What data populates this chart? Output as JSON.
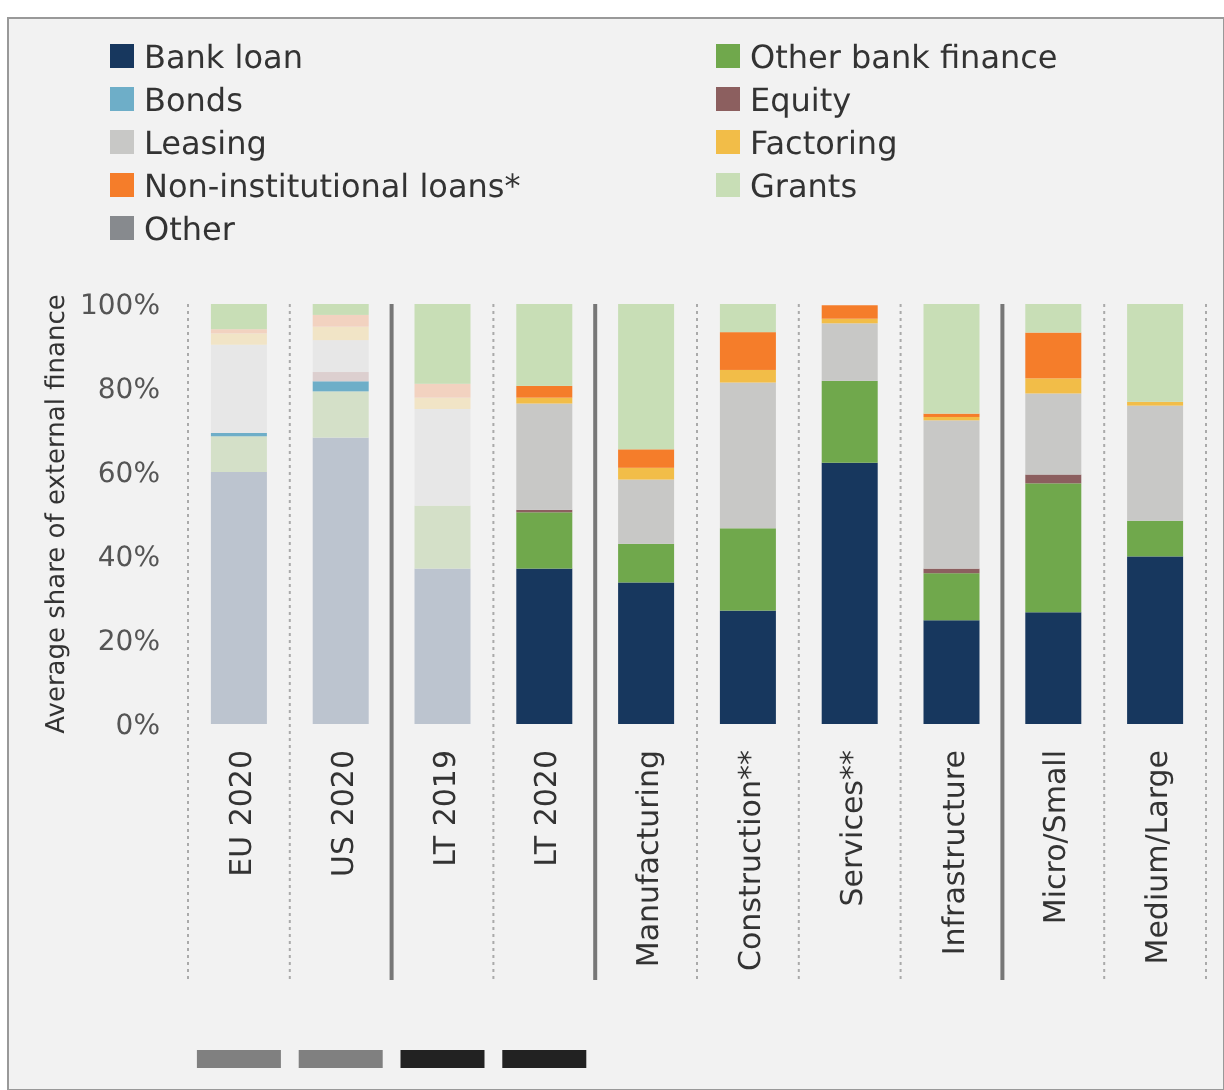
{
  "chart_data": {
    "type": "bar",
    "stacked": true,
    "ylabel": "Average share of external finance",
    "legend": "top",
    "categories": [
      "EU 2020",
      "US 2020",
      "LT 2019",
      "LT 2020",
      "Manufacturing",
      "Construction**",
      "Services**",
      "Infrastructure",
      "Micro/Small",
      "Medium/Large"
    ],
    "ylim": [
      0,
      100
    ],
    "yticks": [
      {
        "value": 0,
        "label": "0%"
      },
      {
        "value": 20,
        "label": "20%"
      },
      {
        "value": 40,
        "label": "40%"
      },
      {
        "value": 60,
        "label": "60%"
      },
      {
        "value": 80,
        "label": "80%"
      },
      {
        "value": 100,
        "label": "100%"
      }
    ],
    "series": [
      {
        "name": "Bank loan",
        "color": "#17375e",
        "colors": [
          "#bcc4cf",
          "#bcc4cf",
          "#bcc4cf",
          "#17375e",
          "#17375e",
          "#17375e",
          "#17375e",
          "#17375e",
          "#17375e",
          "#17375e"
        ],
        "values": [
          60,
          68.2,
          37,
          37,
          33.7,
          27,
          62.2,
          24.7,
          26.6,
          39.9
        ]
      },
      {
        "name": "Other bank finance",
        "color": "#70a84c",
        "colors": [
          "#d4e0c8",
          "#d4e0c8",
          "#d4e0c8",
          "#70a84c",
          "#70a84c",
          "#70a84c",
          "#70a84c",
          "#70a84c",
          "#70a84c",
          "#70a84c"
        ],
        "values": [
          8.5,
          11,
          15,
          13.4,
          9.2,
          19.6,
          19.5,
          11.2,
          30.7,
          8.5
        ]
      },
      {
        "name": "Bonds",
        "color": "#6eaec8",
        "values": [
          0.8,
          2.4,
          0,
          0,
          0,
          0,
          0,
          0,
          0,
          0
        ]
      },
      {
        "name": "Equity",
        "color": "#8c5f5f",
        "colors": [
          "#dccfcf",
          "#dccfcf",
          "#dccfcf",
          "#8c5f5f",
          "#8c5f5f",
          "#8c5f5f",
          "#8c5f5f",
          "#8c5f5f",
          "#8c5f5f",
          "#8c5f5f"
        ],
        "values": [
          0,
          2.2,
          0,
          0.6,
          0,
          0,
          0,
          1.1,
          2.1,
          0
        ]
      },
      {
        "name": "Leasing",
        "color": "#c8c8c6",
        "colors": [
          "#e7e7e7",
          "#e7e7e7",
          "#e7e7e7",
          "#c8c8c6",
          "#c8c8c6",
          "#c8c8c6",
          "#c8c8c6",
          "#c8c8c6",
          "#c8c8c6",
          "#c8c8c6"
        ],
        "values": [
          21,
          7.6,
          23,
          25.3,
          15.3,
          34.7,
          13.7,
          35.3,
          19.3,
          27.4
        ]
      },
      {
        "name": "Factoring",
        "color": "#f2bd48",
        "colors": [
          "#f1e4c6",
          "#f1e4c6",
          "#f1e4c6",
          "#f2bd48",
          "#f2bd48",
          "#f2bd48",
          "#f2bd48",
          "#f2bd48",
          "#f2bd48",
          "#f2bd48"
        ],
        "values": [
          2.7,
          3.2,
          2.7,
          1.4,
          2.8,
          3,
          1.1,
          0.8,
          3.6,
          0.9
        ]
      },
      {
        "name": "Non-institutional loans*",
        "color": "#f57d2a",
        "colors": [
          "#f2d2c0",
          "#f2d2c0",
          "#f2d2c0",
          "#f57d2a",
          "#f57d2a",
          "#f57d2a",
          "#f57d2a",
          "#f57d2a",
          "#f57d2a",
          "#f57d2a"
        ],
        "values": [
          1,
          2.8,
          3.3,
          2.8,
          4.4,
          9,
          3.2,
          0.8,
          10.9,
          0
        ]
      },
      {
        "name": "Grants",
        "color": "#c8deb6",
        "values": [
          6,
          2.6,
          19,
          19.5,
          34.6,
          6.7,
          null,
          26.1,
          6.8,
          23.3
        ]
      },
      {
        "name": "Other",
        "color": "#878a8e",
        "colors": [
          "#d5d6d7",
          "#d5d6d7",
          "#d5d6d7",
          "#878a8e",
          "#878a8e",
          "#878a8e",
          "#878a8e",
          "#878a8e",
          "#878a8e",
          "#878a8e"
        ],
        "values": [
          0,
          0,
          0,
          0,
          0,
          0,
          0,
          0,
          0,
          0
        ]
      }
    ]
  }
}
